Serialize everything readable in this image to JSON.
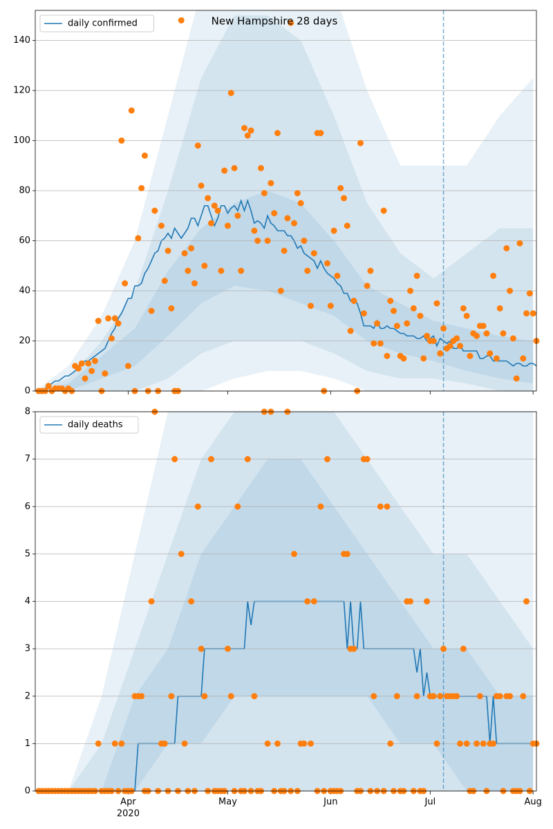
{
  "chart_data": [
    {
      "type": "line",
      "title": "New Hampshire 28 days",
      "xlim": [
        0,
        151
      ],
      "xticks": [
        28,
        58,
        89,
        119,
        150
      ],
      "ylim": [
        0,
        152
      ],
      "yticks": [
        0,
        20,
        40,
        60,
        80,
        100,
        120,
        140
      ],
      "grid": "y",
      "legend": "upper left",
      "vline": 123,
      "x": [
        1,
        2,
        3,
        4,
        5,
        6,
        7,
        8,
        9,
        10,
        11,
        12,
        13,
        14,
        15,
        16,
        17,
        18,
        19,
        20,
        21,
        22,
        23,
        24,
        25,
        26,
        27,
        28,
        29,
        30,
        31,
        32,
        33,
        34,
        35,
        36,
        37,
        38,
        39,
        40,
        41,
        42,
        43,
        44,
        45,
        46,
        47,
        48,
        49,
        50,
        51,
        52,
        53,
        54,
        55,
        56,
        57,
        58,
        59,
        60,
        61,
        62,
        63,
        64,
        65,
        66,
        67,
        68,
        69,
        70,
        71,
        72,
        73,
        74,
        75,
        76,
        77,
        78,
        79,
        80,
        81,
        82,
        83,
        84,
        85,
        86,
        87,
        88,
        89,
        90,
        91,
        92,
        93,
        94,
        95,
        96,
        97,
        98,
        99,
        100,
        101,
        102,
        103,
        104,
        105,
        106,
        107,
        108,
        109,
        110,
        111,
        112,
        113,
        114,
        115,
        116,
        117,
        118,
        119,
        120,
        121,
        122,
        123,
        124,
        125,
        126,
        127,
        128,
        129,
        130,
        131,
        132,
        133,
        134,
        135,
        136,
        137,
        138,
        139,
        140,
        141,
        142,
        143,
        144,
        145,
        146,
        147,
        148,
        149,
        150,
        151
      ],
      "series": [
        {
          "name": "daily confirmed",
          "color": "#1f77b4",
          "values": [
            0,
            0,
            1,
            2,
            3,
            4,
            4,
            5,
            6,
            6,
            7,
            8,
            10,
            11,
            12,
            12,
            13,
            14,
            15,
            16,
            17,
            20,
            23,
            25,
            29,
            31,
            34,
            37,
            37,
            42,
            42,
            43,
            47,
            49,
            52,
            55,
            56,
            60,
            61,
            63,
            61,
            65,
            63,
            61,
            63,
            65,
            69,
            69,
            66,
            70,
            74,
            74,
            70,
            66,
            69,
            74,
            74,
            71,
            73,
            74,
            72,
            76,
            72,
            76,
            72,
            67,
            68,
            67,
            65,
            70,
            67,
            66,
            64,
            64,
            64,
            62,
            62,
            60,
            57,
            58,
            55,
            54,
            53,
            52,
            49,
            52,
            49,
            47,
            46,
            45,
            43,
            42,
            39,
            39,
            36,
            36,
            35,
            31,
            26,
            26,
            26,
            25,
            28,
            25,
            25,
            26,
            25,
            25,
            24,
            23,
            23,
            22,
            22,
            22,
            21,
            21,
            22,
            20,
            21,
            22,
            18,
            21,
            20,
            19,
            20,
            17,
            17,
            18,
            16,
            16,
            16,
            16,
            16,
            13,
            13,
            14,
            14,
            12,
            12,
            12,
            12,
            12,
            11,
            10,
            11,
            11,
            10,
            10,
            11,
            11,
            10
          ]
        }
      ],
      "points": {
        "color": "#ff7f0e",
        "values": [
          0,
          0,
          0,
          2,
          0,
          1,
          1,
          1,
          0,
          1,
          0,
          10,
          9,
          11,
          5,
          11,
          8,
          12,
          28,
          0,
          7,
          29,
          21,
          29,
          27,
          100,
          43,
          10,
          112,
          0,
          61,
          81,
          94,
          0,
          32,
          72,
          0,
          66,
          44,
          56,
          33,
          0,
          0,
          148,
          55,
          48,
          57,
          43,
          98,
          82,
          50,
          77,
          67,
          74,
          72,
          48,
          88,
          66,
          119,
          89,
          70,
          48,
          105,
          102,
          104,
          64,
          60,
          89,
          79,
          60,
          83,
          71,
          103,
          40,
          56,
          69,
          147,
          67,
          79,
          75,
          60,
          48,
          34,
          55,
          103,
          103,
          0,
          51,
          34,
          64,
          46,
          81,
          77,
          66,
          24,
          36,
          0,
          99,
          31,
          42,
          48,
          19,
          27,
          19,
          72,
          14,
          36,
          32,
          26,
          14,
          13,
          27,
          40,
          33,
          46,
          30,
          13,
          22,
          20,
          20,
          35,
          15,
          25,
          17,
          18,
          20,
          21,
          18,
          33,
          30,
          14,
          23,
          22,
          26,
          26,
          23,
          15,
          46,
          13,
          33,
          23,
          57,
          40,
          21,
          5,
          59,
          13,
          31,
          39,
          31,
          20
        ]
      },
      "band_color": "#1f77b4",
      "band_x": [
        0,
        10,
        20,
        30,
        40,
        50,
        60,
        70,
        80,
        90,
        100,
        110,
        120,
        130,
        140,
        150
      ],
      "bands": [
        {
          "upper": [
            0,
            10,
            30,
            60,
            110,
            160,
            160,
            160,
            160,
            160,
            120,
            90,
            90,
            90,
            110,
            125
          ],
          "lower": [
            0,
            0,
            0,
            0,
            0,
            0,
            5,
            8,
            8,
            5,
            0,
            0,
            0,
            0,
            0,
            0
          ]
        },
        {
          "upper": [
            0,
            5,
            20,
            40,
            80,
            125,
            150,
            150,
            140,
            110,
            75,
            55,
            45,
            55,
            65,
            65
          ],
          "lower": [
            0,
            0,
            0,
            0,
            5,
            15,
            20,
            20,
            20,
            15,
            8,
            5,
            5,
            3,
            0,
            0
          ]
        },
        {
          "upper": [
            0,
            3,
            14,
            25,
            48,
            65,
            75,
            80,
            75,
            60,
            42,
            35,
            28,
            25,
            22,
            20
          ],
          "lower": [
            0,
            0,
            5,
            10,
            22,
            35,
            42,
            40,
            35,
            30,
            20,
            15,
            12,
            8,
            5,
            3
          ]
        }
      ]
    },
    {
      "type": "line",
      "xlim": [
        0,
        151
      ],
      "xticks": [
        {
          "value": 28,
          "label": "Apr"
        },
        {
          "value": 58,
          "label": "May"
        },
        {
          "value": 89,
          "label": "Jun"
        },
        {
          "value": 119,
          "label": "Jul"
        },
        {
          "value": 150,
          "label": "Aug"
        }
      ],
      "x_year_label": "2020",
      "ylim": [
        0,
        8
      ],
      "yticks": [
        0,
        1,
        2,
        3,
        4,
        5,
        6,
        7,
        8
      ],
      "grid": "y",
      "legend": "upper left",
      "vline": 123,
      "x": [
        1,
        2,
        3,
        4,
        5,
        6,
        7,
        8,
        9,
        10,
        11,
        12,
        13,
        14,
        15,
        16,
        17,
        18,
        19,
        20,
        21,
        22,
        23,
        24,
        25,
        26,
        27,
        28,
        29,
        30,
        31,
        32,
        33,
        34,
        35,
        36,
        37,
        38,
        39,
        40,
        41,
        42,
        43,
        44,
        45,
        46,
        47,
        48,
        49,
        50,
        51,
        52,
        53,
        54,
        55,
        56,
        57,
        58,
        59,
        60,
        61,
        62,
        63,
        64,
        65,
        66,
        67,
        68,
        69,
        70,
        71,
        72,
        73,
        74,
        75,
        76,
        77,
        78,
        79,
        80,
        81,
        82,
        83,
        84,
        85,
        86,
        87,
        88,
        89,
        90,
        91,
        92,
        93,
        94,
        95,
        96,
        97,
        98,
        99,
        100,
        101,
        102,
        103,
        104,
        105,
        106,
        107,
        108,
        109,
        110,
        111,
        112,
        113,
        114,
        115,
        116,
        117,
        118,
        119,
        120,
        121,
        122,
        123,
        124,
        125,
        126,
        127,
        128,
        129,
        130,
        131,
        132,
        133,
        134,
        135,
        136,
        137,
        138,
        139,
        140,
        141,
        142,
        143,
        144,
        145,
        146,
        147,
        148,
        149,
        150,
        151
      ],
      "series": [
        {
          "name": "daily deaths",
          "color": "#1f77b4",
          "values": [
            0,
            0,
            0,
            0,
            0,
            0,
            0,
            0,
            0,
            0,
            0,
            0,
            0,
            0,
            0,
            0,
            0,
            0,
            0,
            0,
            0,
            0,
            0,
            0,
            0,
            0,
            0,
            0,
            0,
            0,
            1,
            1,
            1,
            1,
            1,
            1,
            1,
            1,
            1,
            1,
            1,
            1,
            2,
            2,
            2,
            2,
            2,
            2,
            2,
            2,
            3,
            3,
            3,
            3,
            3,
            3,
            3,
            3,
            3,
            3,
            3,
            3,
            3,
            4,
            3.5,
            4,
            4,
            4,
            4,
            4,
            4,
            4,
            4,
            4,
            4,
            4,
            4,
            4,
            4,
            4,
            4,
            4,
            4,
            4,
            4,
            4,
            4,
            4,
            4,
            4,
            4,
            4,
            4,
            3,
            4,
            3,
            3,
            4,
            3,
            3,
            3,
            3,
            3,
            3,
            3,
            3,
            3,
            3,
            3,
            3,
            3,
            3,
            3,
            3,
            2.5,
            3,
            2,
            2.5,
            2,
            2,
            2,
            2,
            2,
            2,
            2,
            2,
            2,
            2,
            2,
            2,
            2,
            2,
            2,
            2,
            2,
            2,
            1,
            2,
            1,
            1,
            1,
            1,
            1,
            1,
            1,
            1,
            1,
            1,
            1,
            1,
            1
          ]
        }
      ],
      "points": {
        "color": "#ff7f0e",
        "values": [
          0,
          0,
          0,
          0,
          0,
          0,
          0,
          0,
          0,
          0,
          0,
          0,
          0,
          0,
          0,
          0,
          0,
          0,
          1,
          0,
          0,
          0,
          0,
          1,
          0,
          1,
          0,
          0,
          0,
          2,
          2,
          2,
          0,
          0,
          4,
          8,
          0,
          1,
          1,
          0,
          2,
          7,
          0,
          5,
          1,
          0,
          4,
          0,
          6,
          3,
          2,
          0,
          7,
          0,
          0,
          0,
          0,
          3,
          2,
          0,
          6,
          0,
          0,
          7,
          0,
          2,
          0,
          0,
          8,
          1,
          8,
          0,
          1,
          0,
          0,
          8,
          0,
          5,
          0,
          1,
          1,
          4,
          1,
          4,
          0,
          6,
          0,
          7,
          0,
          0,
          0,
          0,
          5,
          5,
          3,
          3,
          0,
          0,
          7,
          7,
          0,
          2,
          0,
          6,
          0,
          6,
          1,
          0,
          2,
          0,
          0,
          4,
          4,
          0,
          2,
          0,
          0,
          4,
          2,
          2,
          1,
          2,
          3,
          2,
          2,
          2,
          2,
          1,
          3,
          1,
          0,
          0,
          1,
          2,
          1,
          0,
          1,
          1,
          2,
          2,
          0,
          2,
          2,
          0,
          0,
          0,
          2,
          4,
          0,
          1,
          1
        ]
      },
      "band_color": "#1f77b4",
      "band_x": [
        0,
        10,
        20,
        30,
        40,
        50,
        60,
        70,
        80,
        90,
        100,
        110,
        120,
        130,
        140,
        150
      ],
      "bands": [
        {
          "upper": [
            0,
            0,
            2,
            5,
            8,
            9,
            9,
            9,
            9,
            9,
            9,
            9,
            9,
            9,
            9,
            9
          ],
          "lower": [
            0,
            0,
            0,
            0,
            0,
            0,
            0,
            0,
            0,
            0,
            0,
            0,
            0,
            0,
            0,
            0
          ]
        },
        {
          "upper": [
            0,
            0,
            1,
            3,
            5,
            7,
            8,
            9,
            9,
            8,
            7,
            6,
            5,
            5,
            4,
            3
          ],
          "lower": [
            0,
            0,
            0,
            0,
            0,
            0,
            0,
            0,
            0,
            0,
            0,
            0,
            0,
            0,
            0,
            0
          ]
        },
        {
          "upper": [
            0,
            0,
            0,
            2,
            3,
            5,
            6,
            7,
            7,
            6,
            5,
            4,
            3,
            3,
            2,
            2
          ],
          "lower": [
            0,
            0,
            0,
            0,
            1,
            1,
            2,
            2,
            2,
            2,
            2,
            1,
            1,
            0,
            0,
            0
          ]
        }
      ]
    }
  ]
}
